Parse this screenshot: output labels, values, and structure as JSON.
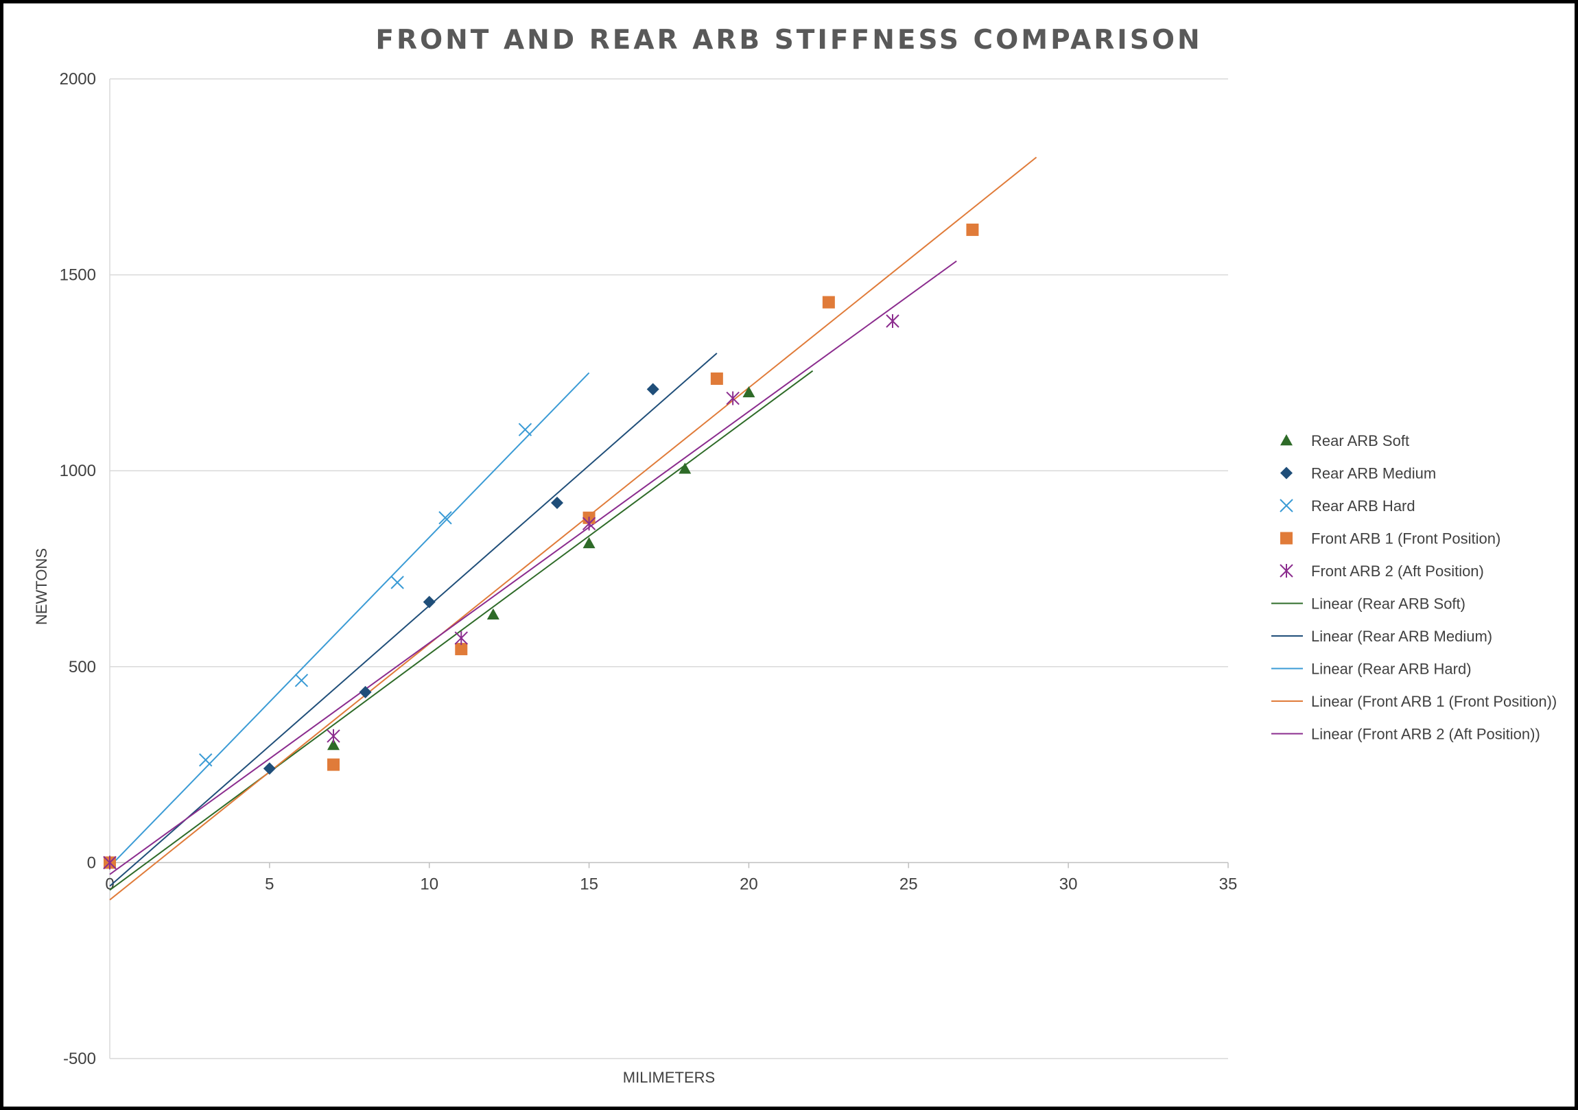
{
  "chart_data": {
    "type": "scatter",
    "title": "FRONT AND REAR ARB STIFFNESS COMPARISON",
    "xlabel": "MILIMETERS",
    "ylabel": "NEWTONS",
    "xlim": [
      0,
      35
    ],
    "ylim": [
      -500,
      2000
    ],
    "xticks": [
      "0",
      "5",
      "10",
      "15",
      "20",
      "25",
      "30",
      "35"
    ],
    "yticks": [
      "-500",
      "0",
      "500",
      "1000",
      "1500",
      "2000"
    ],
    "grid": "horizontal",
    "legend_position": "right",
    "series": [
      {
        "name": "Rear ARB Soft",
        "marker": "triangle",
        "color": "#2E6B28",
        "points": [
          [
            0,
            0
          ],
          [
            7,
            300
          ],
          [
            12,
            633
          ],
          [
            15,
            815
          ],
          [
            18,
            1005
          ],
          [
            20,
            1200
          ]
        ]
      },
      {
        "name": "Rear ARB Medium",
        "marker": "diamond",
        "color": "#1F4E79",
        "points": [
          [
            0,
            0
          ],
          [
            5,
            240
          ],
          [
            8,
            435
          ],
          [
            10,
            665
          ],
          [
            14,
            918
          ],
          [
            17,
            1208
          ]
        ]
      },
      {
        "name": "Rear ARB Hard",
        "marker": "x",
        "color": "#3A9BD5",
        "points": [
          [
            0,
            0
          ],
          [
            3,
            262
          ],
          [
            6,
            465
          ],
          [
            9,
            715
          ],
          [
            10.5,
            880
          ],
          [
            13,
            1105
          ]
        ]
      },
      {
        "name": "Front ARB 1 (Front Position)",
        "marker": "square",
        "color": "#E07B39",
        "points": [
          [
            0,
            0
          ],
          [
            7,
            250
          ],
          [
            11,
            545
          ],
          [
            15,
            880
          ],
          [
            19,
            1235
          ],
          [
            22.5,
            1430
          ],
          [
            27,
            1615
          ]
        ]
      },
      {
        "name": "Front ARB 2 (Aft Position)",
        "marker": "star",
        "color": "#8B2C8E",
        "points": [
          [
            0,
            0
          ],
          [
            7,
            323
          ],
          [
            11,
            573
          ],
          [
            15,
            865
          ],
          [
            19.5,
            1185
          ],
          [
            24.5,
            1382
          ]
        ]
      }
    ],
    "trendlines": [
      {
        "name": "Linear (Rear ARB Soft)",
        "color": "#2E6B28",
        "x_range": [
          0,
          22
        ],
        "line": [
          [
            0,
            -70
          ],
          [
            22,
            1255
          ]
        ]
      },
      {
        "name": "Linear (Rear ARB Medium)",
        "color": "#1F4E79",
        "x_range": [
          0,
          19
        ],
        "line": [
          [
            0,
            -60
          ],
          [
            19,
            1300
          ]
        ]
      },
      {
        "name": "Linear (Rear ARB Hard)",
        "color": "#3A9BD5",
        "x_range": [
          0,
          15
        ],
        "line": [
          [
            0,
            -10
          ],
          [
            15,
            1250
          ]
        ]
      },
      {
        "name": "Linear (Front ARB 1 (Front Position))",
        "color": "#E07B39",
        "x_range": [
          0,
          29
        ],
        "line": [
          [
            0,
            -95
          ],
          [
            29,
            1800
          ]
        ]
      },
      {
        "name": "Linear (Front ARB 2 (Aft Position))",
        "color": "#8B2C8E",
        "x_range": [
          0,
          26.5
        ],
        "line": [
          [
            0,
            -30
          ],
          [
            26.5,
            1535
          ]
        ]
      }
    ]
  }
}
